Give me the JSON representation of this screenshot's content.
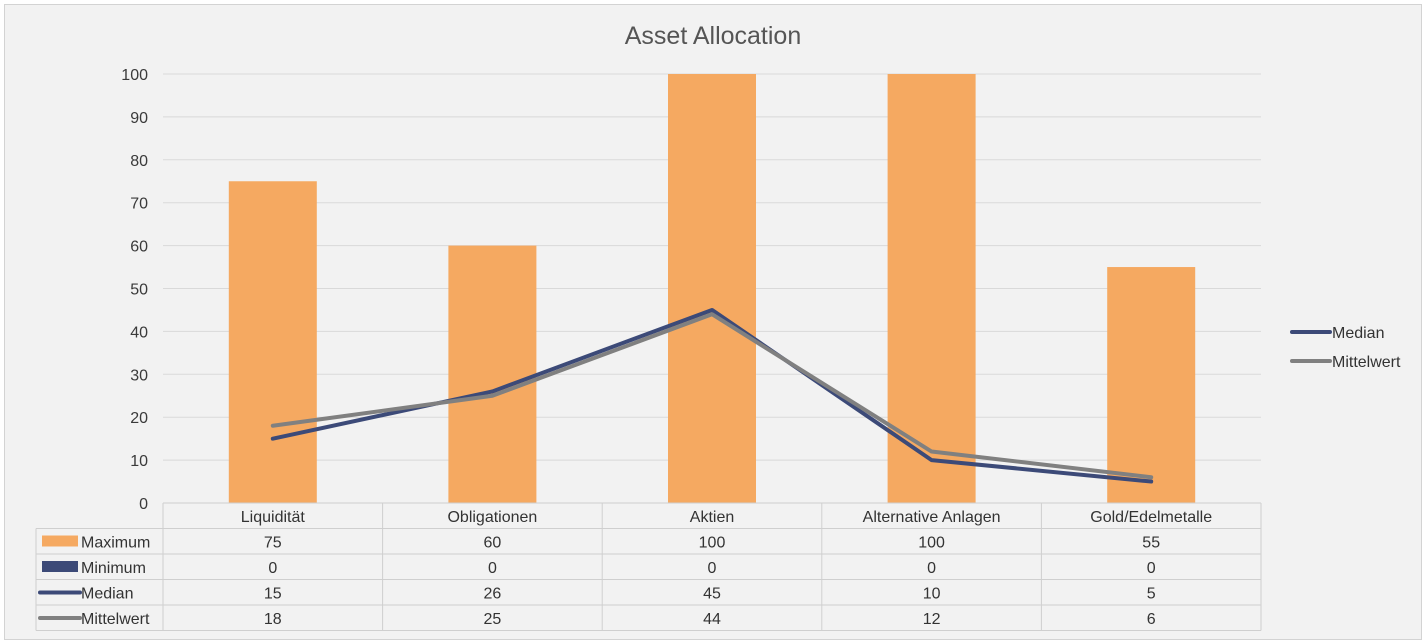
{
  "chart_data": {
    "type": "bar",
    "title": "Asset Allocation",
    "categories": [
      "Liquidität",
      "Obligationen",
      "Aktien",
      "Alternative Anlagen",
      "Gold/Edelmetalle"
    ],
    "ylim": [
      0,
      100
    ],
    "yticks": [
      0,
      10,
      20,
      30,
      40,
      50,
      60,
      70,
      80,
      90,
      100
    ],
    "grid": true,
    "legend_position": "right",
    "series": [
      {
        "name": "Maximum",
        "kind": "bar",
        "color": "#f5a961",
        "values": [
          75,
          60,
          100,
          100,
          55
        ]
      },
      {
        "name": "Minimum",
        "kind": "bar",
        "color": "#3c4a78",
        "values": [
          0,
          0,
          0,
          0,
          0
        ]
      },
      {
        "name": "Median",
        "kind": "line",
        "color": "#3c4a78",
        "values": [
          15,
          26,
          45,
          10,
          5
        ]
      },
      {
        "name": "Mittelwert",
        "kind": "line",
        "color": "#808080",
        "values": [
          18,
          25,
          44,
          12,
          6
        ]
      }
    ],
    "table_values": [
      [
        "75",
        "60",
        "100",
        "100",
        "55"
      ],
      [
        "0",
        "0",
        "0",
        "0",
        "0"
      ],
      [
        "15",
        "26",
        "45",
        "10",
        "5"
      ],
      [
        "18",
        "25",
        "44",
        "12",
        "6"
      ]
    ],
    "legend_entries": [
      "Median",
      "Mittelwert"
    ]
  }
}
